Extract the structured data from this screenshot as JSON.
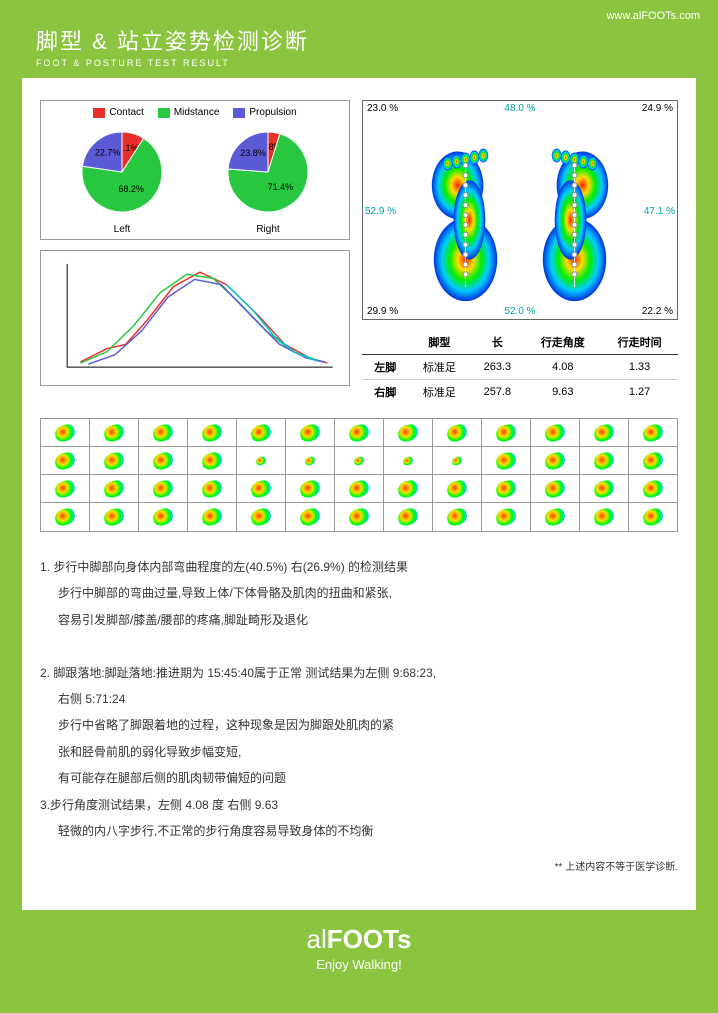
{
  "url": "www.alFOOTs.com",
  "title_cn": "脚型 & 站立姿势检测诊断",
  "title_en": "FOOT & POSTURE TEST RESULT",
  "legend": {
    "contact": "Contact",
    "midstance": "Midstance",
    "propulsion": "Propulsion"
  },
  "colors": {
    "contact": "#e8302a",
    "midstance": "#27c840",
    "propulsion": "#5b5bd6",
    "bg_green": "#8bc53f"
  },
  "pie_left": {
    "label": "Left",
    "slices": [
      {
        "label": "9.1%",
        "value": 9.1,
        "color": "#e8302a"
      },
      {
        "label": "68.2%",
        "value": 68.2,
        "color": "#27c840"
      },
      {
        "label": "22.7%",
        "value": 22.7,
        "color": "#5b5bd6"
      }
    ]
  },
  "pie_right": {
    "label": "Right",
    "slices": [
      {
        "label": "4.8%",
        "value": 4.8,
        "color": "#e8302a"
      },
      {
        "label": "71.4%",
        "value": 71.4,
        "color": "#27c840"
      },
      {
        "label": "23.8%",
        "value": 23.8,
        "color": "#5b5bd6"
      }
    ]
  },
  "line_chart": {
    "xlim": [
      0,
      100
    ],
    "ylim": [
      0,
      100
    ],
    "series": [
      {
        "color": "#e8302a",
        "points": [
          [
            5,
            5
          ],
          [
            15,
            18
          ],
          [
            22,
            22
          ],
          [
            30,
            45
          ],
          [
            40,
            78
          ],
          [
            50,
            92
          ],
          [
            60,
            80
          ],
          [
            72,
            50
          ],
          [
            82,
            22
          ],
          [
            92,
            8
          ],
          [
            98,
            4
          ]
        ]
      },
      {
        "color": "#27c840",
        "points": [
          [
            5,
            4
          ],
          [
            15,
            15
          ],
          [
            25,
            40
          ],
          [
            35,
            72
          ],
          [
            45,
            90
          ],
          [
            55,
            86
          ],
          [
            65,
            62
          ],
          [
            75,
            35
          ],
          [
            85,
            15
          ],
          [
            95,
            6
          ]
        ]
      },
      {
        "color": "#5b5bd6",
        "points": [
          [
            8,
            3
          ],
          [
            18,
            12
          ],
          [
            28,
            35
          ],
          [
            38,
            68
          ],
          [
            48,
            85
          ],
          [
            58,
            80
          ],
          [
            70,
            48
          ],
          [
            80,
            22
          ],
          [
            90,
            9
          ],
          [
            97,
            5
          ]
        ]
      },
      {
        "color": "#00c8d6",
        "points": [
          [
            60,
            80
          ],
          [
            70,
            55
          ],
          [
            78,
            30
          ],
          [
            86,
            14
          ],
          [
            94,
            6
          ]
        ]
      }
    ]
  },
  "heatmap": {
    "top": {
      "left": "23.0 %",
      "mid": "48.0 %",
      "right": "24.9 %",
      "mid_color": "#00a0a0"
    },
    "mid": {
      "left": "52.9 %",
      "right": "47.1 %",
      "color": "#00a0a0"
    },
    "bot": {
      "left": "29.9 %",
      "mid": "52.0 %",
      "right": "22.2 %",
      "mid_color": "#00a0a0"
    }
  },
  "table": {
    "headers": [
      "",
      "脚型",
      "长",
      "行走角度",
      "行走时间"
    ],
    "rows": [
      [
        "左脚",
        "标准足",
        "263.3",
        "4.08",
        "1.33"
      ],
      [
        "右脚",
        "标准足",
        "257.8",
        "9.63",
        "1.27"
      ]
    ]
  },
  "sequence_grid": {
    "rows": 4,
    "cols": 13
  },
  "analysis": [
    "1. 步行中脚部向身体内部弯曲程度的左(40.5%)  右(26.9%) 的检测结果",
    "步行中脚部的弯曲过量,导致上体/下体骨骼及肌肉的扭曲和紧张,",
    "容易引发脚部/膝盖/腰部的疼痛,脚趾畸形及退化",
    "",
    "2. 脚跟落地:脚趾落地:推进期为 15:45:40属于正常 测试结果为左侧 9:68:23,",
    "右侧  5:71:24",
    "步行中省略了脚跟着地的过程，这种现象是因为脚跟处肌肉的紧",
    "张和胫骨前肌的弱化导致步幅变短,",
    "有可能存在腿部后侧的肌肉韧带偏短的问题",
    "3.步行角度测试结果，左侧 4.08 度 右侧 9.63",
    "轻微的内八字步行,不正常的步行角度容易导致身体的不均衡"
  ],
  "disclaimer": "** 上述内容不等于医学诊断.",
  "brand_prefix": "al",
  "brand_bold": "FOOTs",
  "slogan": "Enjoy Walking!"
}
